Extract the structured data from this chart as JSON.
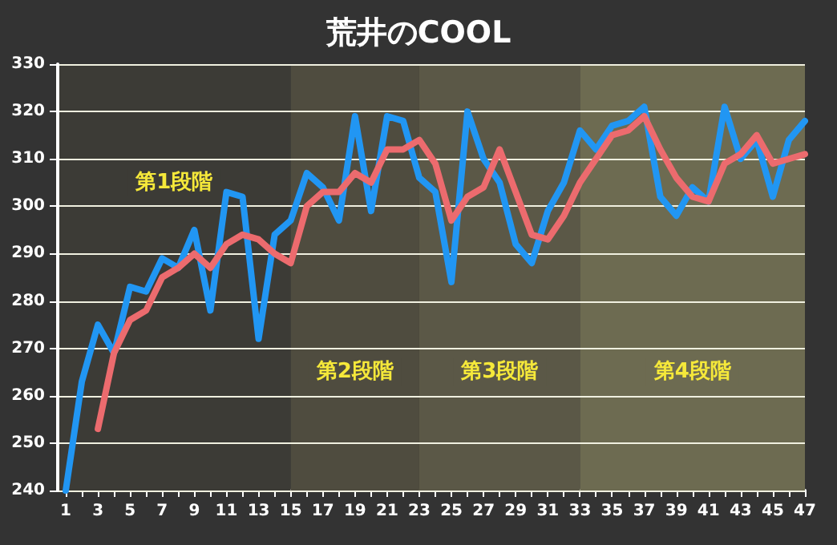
{
  "chart_data": {
    "type": "line",
    "title": "荒井のCOOL",
    "x": [
      1,
      2,
      3,
      4,
      5,
      6,
      7,
      8,
      9,
      10,
      11,
      12,
      13,
      14,
      15,
      16,
      17,
      18,
      19,
      20,
      21,
      22,
      23,
      24,
      25,
      26,
      27,
      28,
      29,
      30,
      31,
      32,
      33,
      34,
      35,
      36,
      37,
      38,
      39,
      40,
      41,
      42,
      43,
      44,
      45,
      46,
      47
    ],
    "series": [
      {
        "color": "#2196f3",
        "values": [
          240,
          263,
          275,
          269,
          283,
          282,
          289,
          287,
          295,
          278,
          303,
          302,
          272,
          294,
          297,
          307,
          304,
          297,
          319,
          299,
          319,
          318,
          306,
          303,
          284,
          320,
          310,
          305,
          292,
          288,
          299,
          305,
          316,
          312,
          317,
          318,
          321,
          302,
          298,
          304,
          301,
          321,
          310,
          314,
          302,
          314,
          318
        ]
      },
      {
        "color": "#ec6b6e",
        "values": [
          null,
          null,
          253,
          269,
          276,
          278,
          285,
          287,
          290,
          287,
          292,
          294,
          293,
          290,
          288,
          300,
          303,
          303,
          307,
          305,
          312,
          312,
          314,
          309,
          297,
          302,
          304,
          312,
          303,
          294,
          293,
          298,
          305,
          310,
          315,
          316,
          319,
          312,
          306,
          302,
          301,
          309,
          311,
          315,
          309,
          310,
          311
        ]
      }
    ],
    "xlim": [
      0.5,
      47
    ],
    "xticks": [
      1,
      {
        "value": 2,
        "label": null
      },
      3,
      {
        "value": 4,
        "label": null
      },
      5,
      {
        "value": 6,
        "label": null
      },
      7,
      {
        "value": 8,
        "label": null
      },
      9,
      {
        "value": 10,
        "label": null
      },
      11,
      {
        "value": 12,
        "label": null
      },
      13,
      {
        "value": 14,
        "label": null
      },
      15,
      {
        "value": 16,
        "label": null
      },
      17,
      {
        "value": 18,
        "label": null
      },
      19,
      {
        "value": 20,
        "label": null
      },
      21,
      {
        "value": 22,
        "label": null
      },
      23,
      {
        "value": 24,
        "label": null
      },
      25,
      {
        "value": 26,
        "label": null
      },
      27,
      {
        "value": 28,
        "label": null
      },
      29,
      {
        "value": 30,
        "label": null
      },
      31,
      {
        "value": 32,
        "label": null
      },
      33,
      {
        "value": 34,
        "label": null
      },
      35,
      {
        "value": 36,
        "label": null
      },
      37,
      {
        "value": 38,
        "label": null
      },
      39,
      {
        "value": 40,
        "label": null
      },
      41,
      {
        "value": 42,
        "label": null
      },
      43,
      {
        "value": 44,
        "label": null
      },
      45,
      {
        "value": 46,
        "label": null
      },
      47
    ],
    "ylim": [
      240,
      330
    ],
    "yticks": [
      240,
      250,
      260,
      270,
      280,
      290,
      300,
      310,
      320,
      330
    ],
    "grid": "y",
    "marker": "none",
    "bands": [
      {
        "axis": "x",
        "from": 0.5,
        "to": 15,
        "label": "第1段階",
        "color": "#3c3b36"
      },
      {
        "axis": "x",
        "from": 15,
        "to": 23,
        "label": "第2段階",
        "color": "#4f4c3f"
      },
      {
        "axis": "x",
        "from": 23,
        "to": 33,
        "label": "第3段階",
        "color": "#5b5847"
      },
      {
        "axis": "x",
        "from": 33,
        "to": 47,
        "label": "第4段階",
        "color": "#6d6b51"
      }
    ]
  }
}
